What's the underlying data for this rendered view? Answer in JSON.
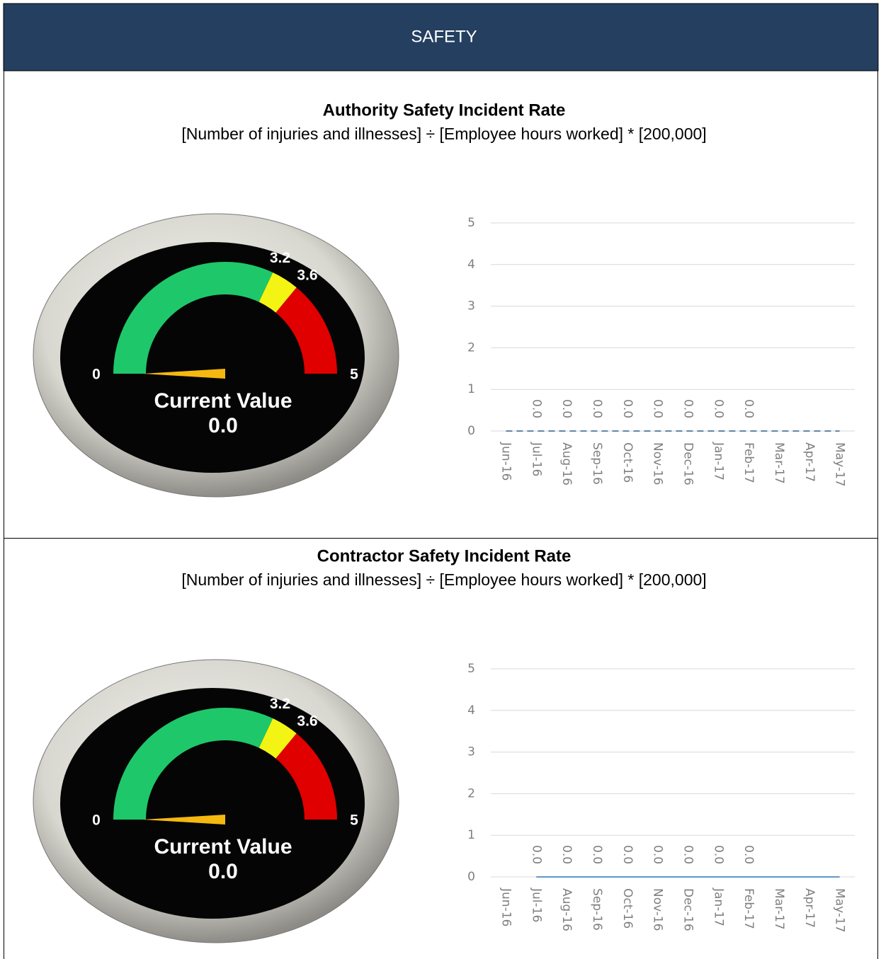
{
  "header": {
    "title": "SAFETY"
  },
  "chart_data": [
    {
      "type": "gauge",
      "title": "Authority Safety Incident Rate",
      "subtitle": "[Number of injuries and illnesses] ÷ [Employee hours worked] * [200,000]",
      "lim": [
        0,
        5
      ],
      "ticks": [
        0,
        3.2,
        3.6,
        5
      ],
      "band_colors": [
        "#1ec86a",
        "#f4f414",
        "#e00000"
      ],
      "label": "Current Value",
      "value": 0,
      "value_label": "0.0"
    },
    {
      "type": "line",
      "categories": [
        "Jun-16",
        "Jul-16",
        "Aug-16",
        "Sep-16",
        "Oct-16",
        "Nov-16",
        "Dec-16",
        "Jan-17",
        "Feb-17",
        "Mar-17",
        "Apr-17",
        "May-17"
      ],
      "values": [
        0,
        0,
        0,
        0,
        0,
        0,
        0,
        0,
        0,
        0,
        0,
        0
      ],
      "value_labels": [
        null,
        "0.0",
        "0.0",
        "0.0",
        "0.0",
        "0.0",
        "0.0",
        "0.0",
        "0.0",
        null,
        null,
        null
      ],
      "color": "#2e5f8a",
      "dashed": true,
      "ylim": [
        0,
        5
      ],
      "yticks": [
        0,
        1,
        2,
        3,
        4,
        5
      ],
      "grid": true
    },
    {
      "type": "gauge",
      "title": "Contractor Safety Incident Rate",
      "subtitle": "[Number of injuries and illnesses] ÷ [Employee hours worked] * [200,000]",
      "lim": [
        0,
        5
      ],
      "ticks": [
        0,
        3.2,
        3.6,
        5
      ],
      "band_colors": [
        "#1ec86a",
        "#f4f414",
        "#e00000"
      ],
      "label": "Current Value",
      "value": 0,
      "value_label": "0.0"
    },
    {
      "type": "line",
      "categories": [
        "Jun-16",
        "Jul-16",
        "Aug-16",
        "Sep-16",
        "Oct-16",
        "Nov-16",
        "Dec-16",
        "Jan-17",
        "Feb-17",
        "Mar-17",
        "Apr-17",
        "May-17"
      ],
      "values": [
        null,
        0,
        0,
        0,
        0,
        0,
        0,
        0,
        0,
        0,
        0,
        0
      ],
      "value_labels": [
        null,
        "0.0",
        "0.0",
        "0.0",
        "0.0",
        "0.0",
        "0.0",
        "0.0",
        "0.0",
        null,
        null,
        null
      ],
      "color": "#2e75b6",
      "dashed": false,
      "ylim": [
        0,
        5
      ],
      "yticks": [
        0,
        1,
        2,
        3,
        4,
        5
      ],
      "grid": true
    }
  ]
}
